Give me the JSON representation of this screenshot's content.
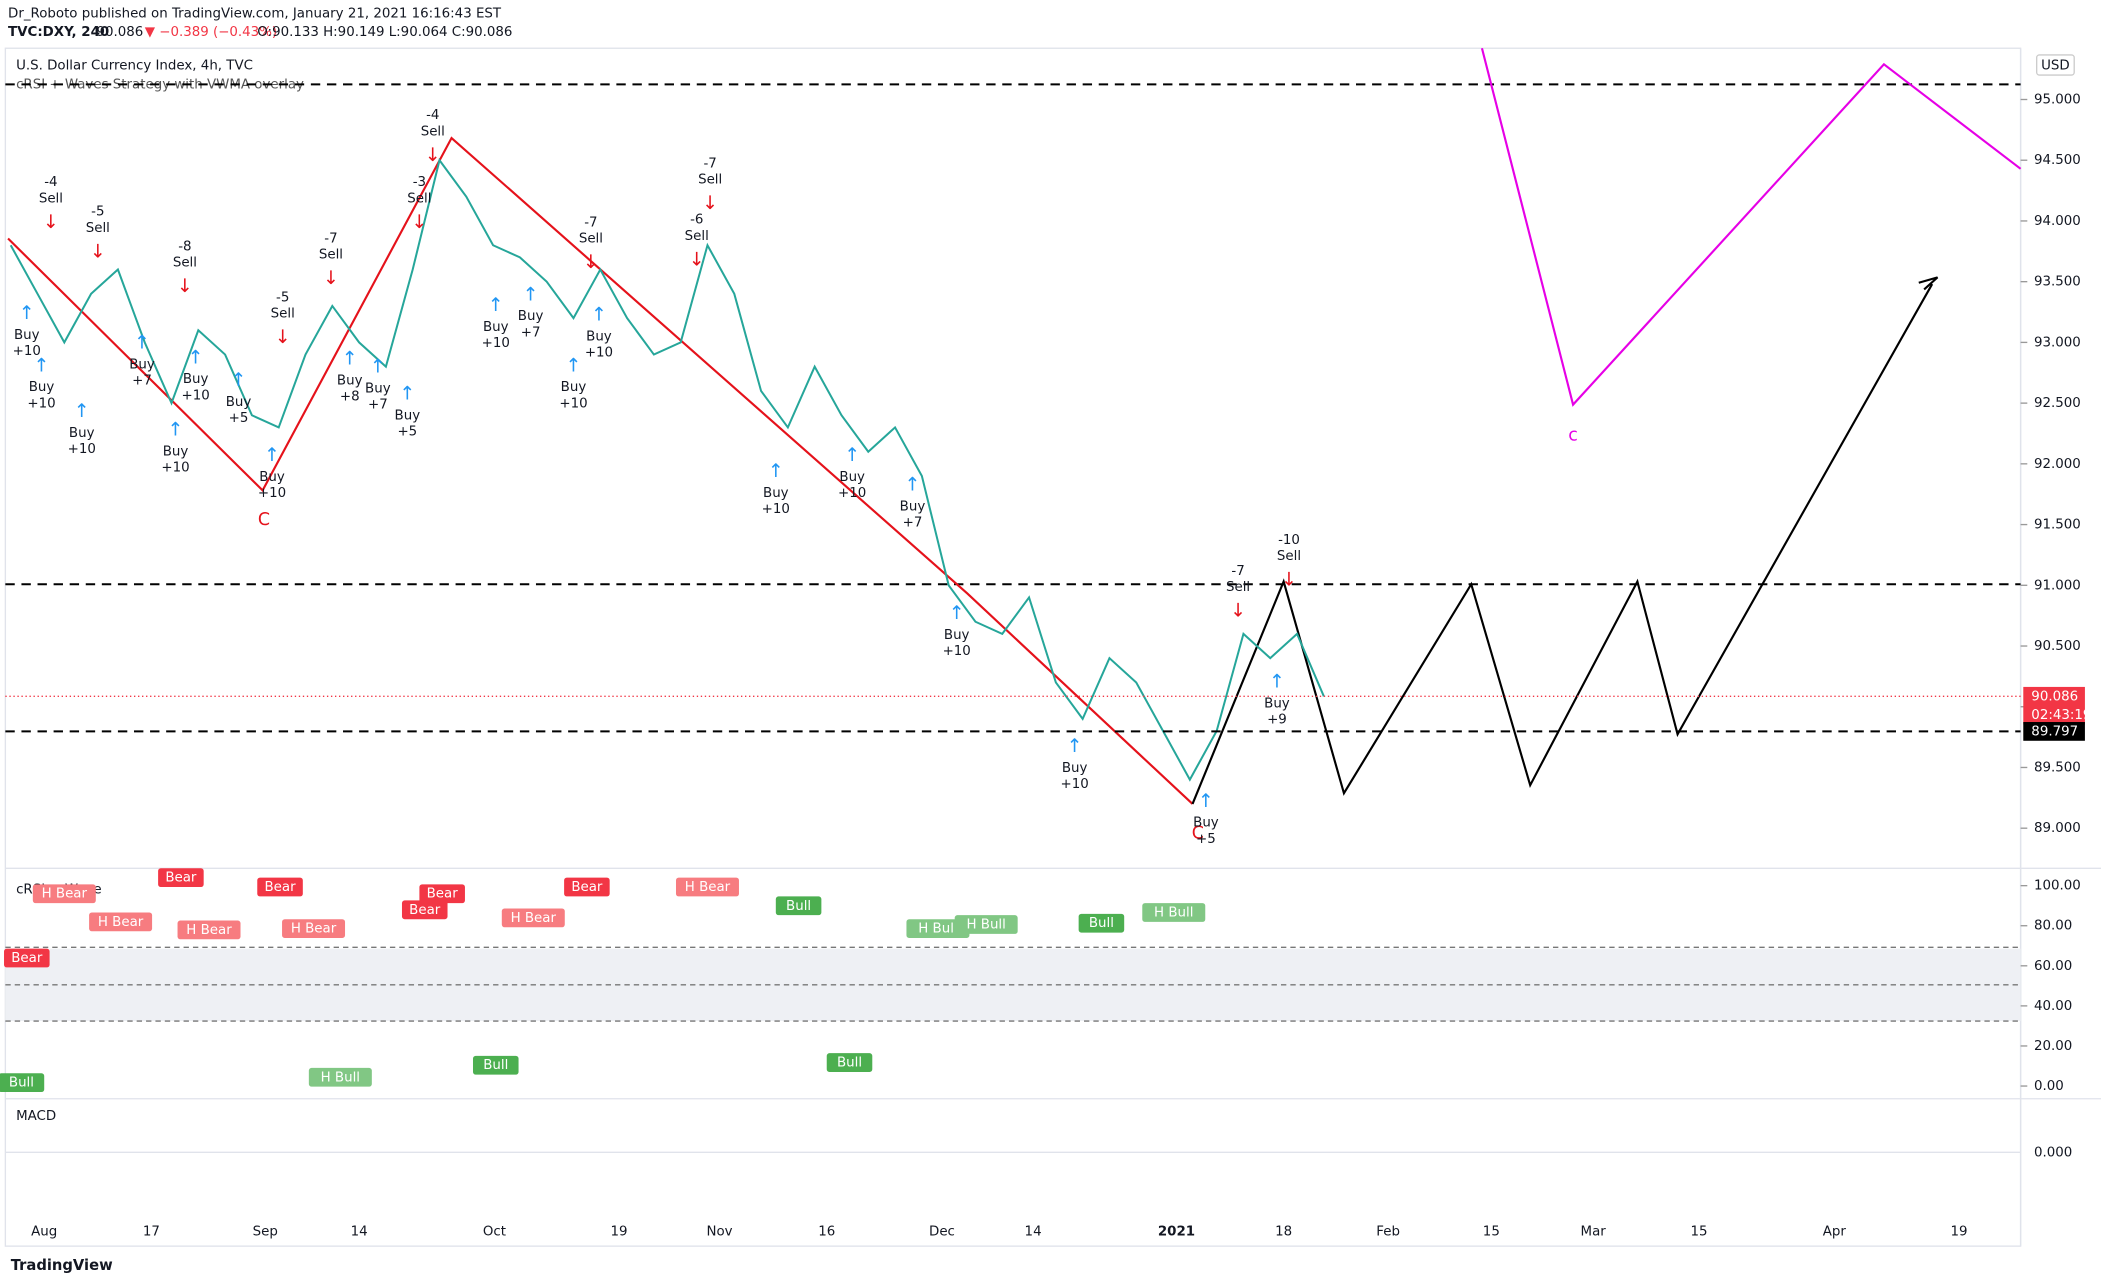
{
  "header": {
    "published": "Dr_Roboto published on TradingView.com, January 21, 2021 16:16:43 EST",
    "symbol": "TVC:DXY, 240",
    "last": "90.086",
    "change": "▼ −0.389 (−0.43%)",
    "ohlc": "O:90.133 H:90.149 L:90.064 C:90.086"
  },
  "main": {
    "title": "U.S. Dollar Currency Index, 4h, TVC",
    "overlay": "cRSI + Waves Strategy with VWMA overlay",
    "currency": "USD",
    "ylim": [
      88.67,
      95.4
    ],
    "yticks": [
      {
        "value": 89,
        "label": "89.000"
      },
      {
        "value": 89.5,
        "label": "89.500"
      },
      {
        "value": 90,
        "label": "90.000"
      },
      {
        "value": 90.5,
        "label": "90.500"
      },
      {
        "value": 91,
        "label": "91.000"
      },
      {
        "value": 91.5,
        "label": "91.500"
      },
      {
        "value": 92,
        "label": "92.000"
      },
      {
        "value": 92.5,
        "label": "92.500"
      },
      {
        "value": 93,
        "label": "93.000"
      },
      {
        "value": 93.5,
        "label": "93.500"
      },
      {
        "value": 94,
        "label": "94.000"
      },
      {
        "value": 94.5,
        "label": "94.500"
      },
      {
        "value": 95,
        "label": "95.000"
      }
    ],
    "price": {
      "color": "#26a69a",
      "values": [
        93.8,
        93.4,
        93.0,
        93.4,
        93.6,
        93.0,
        92.5,
        93.1,
        92.9,
        92.4,
        92.3,
        92.9,
        93.3,
        93.0,
        92.8,
        93.6,
        94.5,
        94.2,
        93.8,
        93.7,
        93.5,
        93.2,
        93.6,
        93.2,
        92.9,
        93.0,
        93.8,
        93.4,
        92.6,
        92.3,
        92.8,
        92.4,
        92.1,
        92.3,
        91.9,
        91.0,
        90.7,
        90.6,
        90.9,
        90.2,
        89.9,
        90.4,
        90.2,
        89.8,
        89.4,
        89.8,
        90.6,
        90.4,
        90.6,
        90.086
      ]
    },
    "last_price": {
      "value": 90.086,
      "label": "90.086",
      "countdown": "02:43:19"
    },
    "level": {
      "value": 89.797,
      "label": "89.797"
    },
    "wave_labels": {
      "red": "C",
      "red2": "C",
      "magenta": "c"
    },
    "signals": [
      {
        "text": "Sell",
        "score": "-4"
      },
      {
        "text": "Sell",
        "score": "-5"
      },
      {
        "text": "Sell",
        "score": "-8"
      },
      {
        "text": "Sell",
        "score": "-5"
      },
      {
        "text": "Sell",
        "score": "-7"
      },
      {
        "text": "Sell",
        "score": "-3"
      },
      {
        "text": "Sell",
        "score": "-4"
      },
      {
        "text": "Sell",
        "score": "-7"
      },
      {
        "text": "Sell",
        "score": "-7"
      },
      {
        "text": "Sell",
        "score": "-6"
      },
      {
        "text": "Sell",
        "score": "-7"
      },
      {
        "text": "Sell",
        "score": "-10"
      },
      {
        "text": "Buy",
        "score": "+10"
      },
      {
        "text": "Buy",
        "score": "+10"
      },
      {
        "text": "Buy",
        "score": "+10"
      },
      {
        "text": "Buy",
        "score": "+7"
      },
      {
        "text": "Buy",
        "score": "+10"
      },
      {
        "text": "Buy",
        "score": "+10"
      },
      {
        "text": "Buy",
        "score": "+5"
      },
      {
        "text": "Buy",
        "score": "+10"
      },
      {
        "text": "Buy",
        "score": "+8"
      },
      {
        "text": "Buy",
        "score": "+7"
      },
      {
        "text": "Buy",
        "score": "+5"
      },
      {
        "text": "Buy",
        "score": "+10"
      },
      {
        "text": "Buy",
        "score": "+7"
      },
      {
        "text": "Buy",
        "score": "+10"
      },
      {
        "text": "Buy",
        "score": "+10"
      },
      {
        "text": "Buy",
        "score": "+10"
      },
      {
        "text": "Buy",
        "score": "+10"
      },
      {
        "text": "Buy",
        "score": "+7"
      },
      {
        "text": "Buy",
        "score": "+10"
      },
      {
        "text": "Buy",
        "score": "+10"
      },
      {
        "text": "Buy",
        "score": "+5"
      },
      {
        "text": "Buy",
        "score": "+9"
      }
    ]
  },
  "rsi": {
    "title": "cRSI + Wave",
    "ylim": [
      -5,
      106
    ],
    "yticks": [
      {
        "value": 0,
        "label": "0.00"
      },
      {
        "value": 20,
        "label": "20.00"
      },
      {
        "value": 40,
        "label": "40.00"
      },
      {
        "value": 60,
        "label": "60.00"
      },
      {
        "value": 80,
        "label": "80.00"
      },
      {
        "value": 100,
        "label": "100.00"
      }
    ],
    "tags": [
      {
        "text": "H Bear",
        "color": "#f77c80"
      },
      {
        "text": "Bear",
        "color": "#f23645"
      },
      {
        "text": "H Bear",
        "color": "#f77c80"
      },
      {
        "text": "Bear",
        "color": "#f23645"
      },
      {
        "text": "H Bear",
        "color": "#f77c80"
      },
      {
        "text": "Bear",
        "color": "#f23645"
      },
      {
        "text": "H Bear",
        "color": "#f77c80"
      },
      {
        "text": "Bear",
        "color": "#f23645"
      },
      {
        "text": "Bear",
        "color": "#f23645"
      },
      {
        "text": "H Bear",
        "color": "#f77c80"
      },
      {
        "text": "Bear",
        "color": "#f23645"
      },
      {
        "text": "H Bear",
        "color": "#f77c80"
      },
      {
        "text": "Bull",
        "color": "#4caf50"
      },
      {
        "text": "H Bull",
        "color": "#81c784"
      },
      {
        "text": "H Bull",
        "color": "#81c784"
      },
      {
        "text": "Bull",
        "color": "#4caf50"
      },
      {
        "text": "H Bull",
        "color": "#81c784"
      },
      {
        "text": "Bull",
        "color": "#4caf50"
      },
      {
        "text": "Bull",
        "color": "#4caf50"
      },
      {
        "text": "Bull",
        "color": "#4caf50"
      },
      {
        "text": "H Bull",
        "color": "#81c784"
      }
    ]
  },
  "macd": {
    "title": "MACD",
    "ylim": [
      -1,
      1
    ],
    "yticks": [
      {
        "value": 0,
        "label": "0.000"
      }
    ]
  },
  "xaxis": [
    "Aug",
    "17",
    "Sep",
    "14",
    "Oct",
    "19",
    "Nov",
    "16",
    "Dec",
    "14",
    "2021",
    "18",
    "Feb",
    "15",
    "Mar",
    "15",
    "Apr",
    "19"
  ],
  "footer": "TradingView"
}
